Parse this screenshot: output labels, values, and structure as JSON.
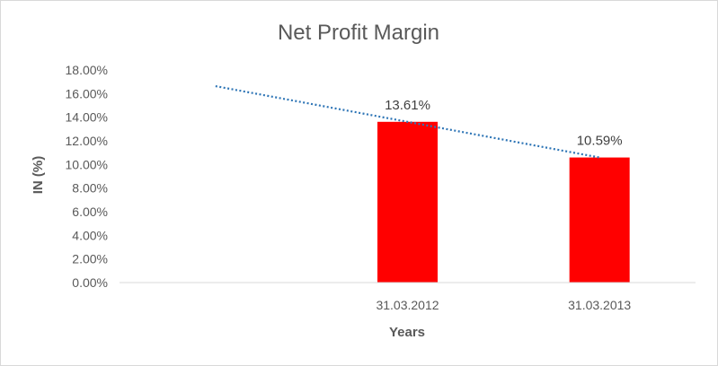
{
  "chart_data": {
    "type": "bar",
    "title": "Net Profit Margin",
    "xlabel": "Years",
    "ylabel": "IN (%)",
    "categories": [
      "",
      "31.03.2012",
      "31.03.2013"
    ],
    "series": [
      {
        "values": [
          null,
          13.61,
          10.59
        ],
        "data_labels": [
          "",
          "13.61%",
          "10.59%"
        ],
        "color": "#ff0000"
      }
    ],
    "trendline": {
      "type": "linear",
      "style": "dotted",
      "color": "#2e75b6",
      "start": 16.63,
      "end": 10.59
    },
    "ylim": [
      0,
      18
    ],
    "yticks": [
      0,
      2,
      4,
      6,
      8,
      10,
      12,
      14,
      16,
      18
    ],
    "ytick_labels": [
      "0.00%",
      "2.00%",
      "4.00%",
      "6.00%",
      "8.00%",
      "10.00%",
      "12.00%",
      "14.00%",
      "16.00%",
      "18.00%"
    ],
    "grid": false,
    "legend": "none"
  }
}
